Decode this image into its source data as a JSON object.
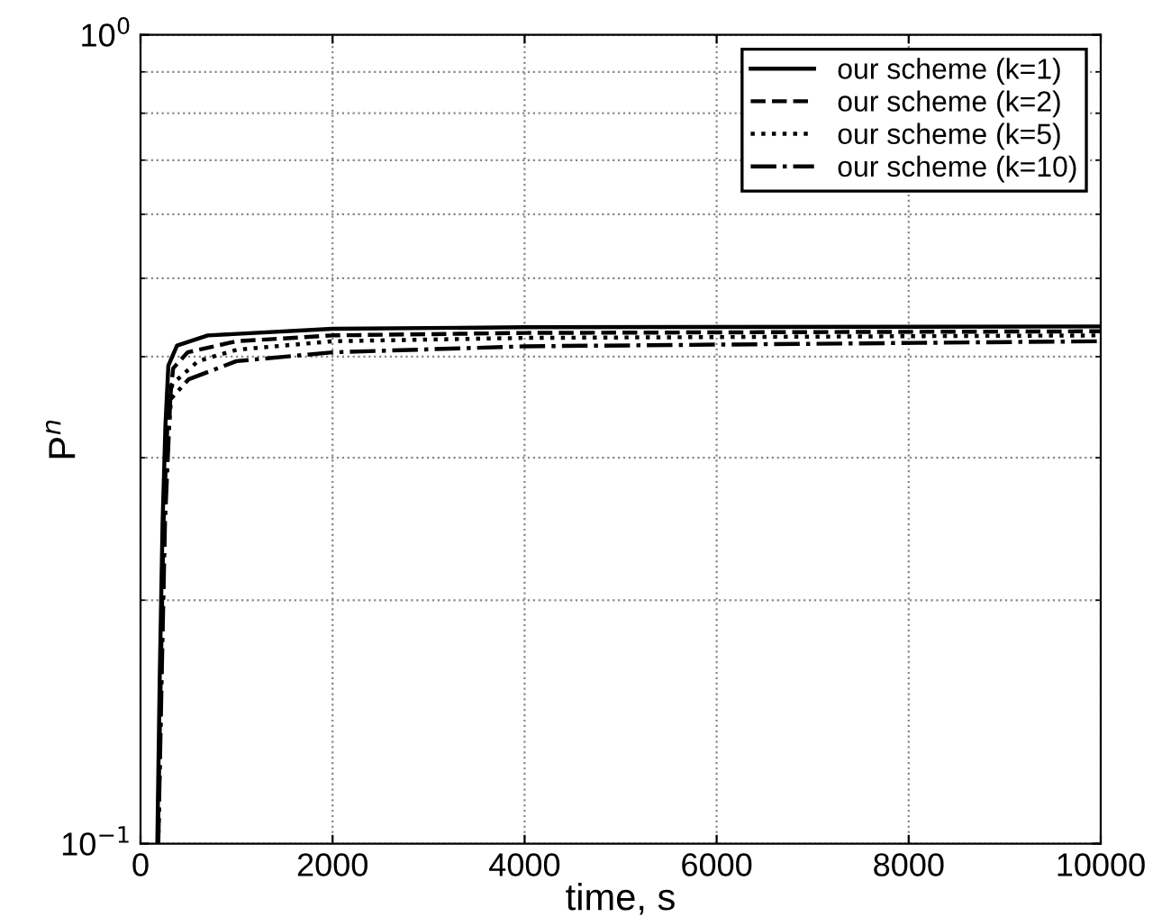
{
  "chart_data": {
    "type": "line",
    "xlabel": "time, s",
    "ylabel": "P$^{n}$",
    "log": "y",
    "grid": true,
    "legend": "top right",
    "xlim": [
      0,
      10000
    ],
    "xticks": [
      0,
      2000,
      4000,
      6000,
      8000,
      10000
    ],
    "ylim": [
      0.1,
      1
    ],
    "yticks": [
      {
        "value": 0.1,
        "label": "10$^{−1}$"
      },
      {
        "value": 1,
        "label": "10$^{0}$"
      }
    ],
    "series": [
      {
        "name": "our scheme (k=1)",
        "color": "#000000",
        "line_style": "solid",
        "x": [
          175,
          200,
          230,
          260,
          290,
          380,
          700,
          2000,
          4000,
          10000
        ],
        "values": [
          0.1,
          0.16,
          0.25,
          0.33,
          0.39,
          0.413,
          0.425,
          0.433,
          0.435,
          0.436
        ]
      },
      {
        "name": "our scheme (k=2)",
        "color": "#000000",
        "line_style": "dashed",
        "x": [
          180,
          210,
          240,
          280,
          340,
          490,
          1000,
          2000,
          4000,
          10000
        ],
        "values": [
          0.1,
          0.16,
          0.25,
          0.33,
          0.387,
          0.405,
          0.418,
          0.425,
          0.428,
          0.43
        ]
      },
      {
        "name": "our scheme (k=5)",
        "color": "#000000",
        "line_style": "dotted",
        "x": [
          185,
          215,
          250,
          290,
          330,
          600,
          1000,
          2000,
          4000,
          10000
        ],
        "values": [
          0.1,
          0.16,
          0.25,
          0.32,
          0.37,
          0.395,
          0.408,
          0.418,
          0.422,
          0.425
        ]
      },
      {
        "name": "our scheme (k=10)",
        "color": "#000000",
        "line_style": "dashdot",
        "x": [
          185,
          220,
          255,
          310,
          500,
          1000,
          2000,
          4000,
          10000
        ],
        "values": [
          0.1,
          0.16,
          0.25,
          0.354,
          0.375,
          0.395,
          0.405,
          0.412,
          0.418
        ]
      }
    ]
  }
}
